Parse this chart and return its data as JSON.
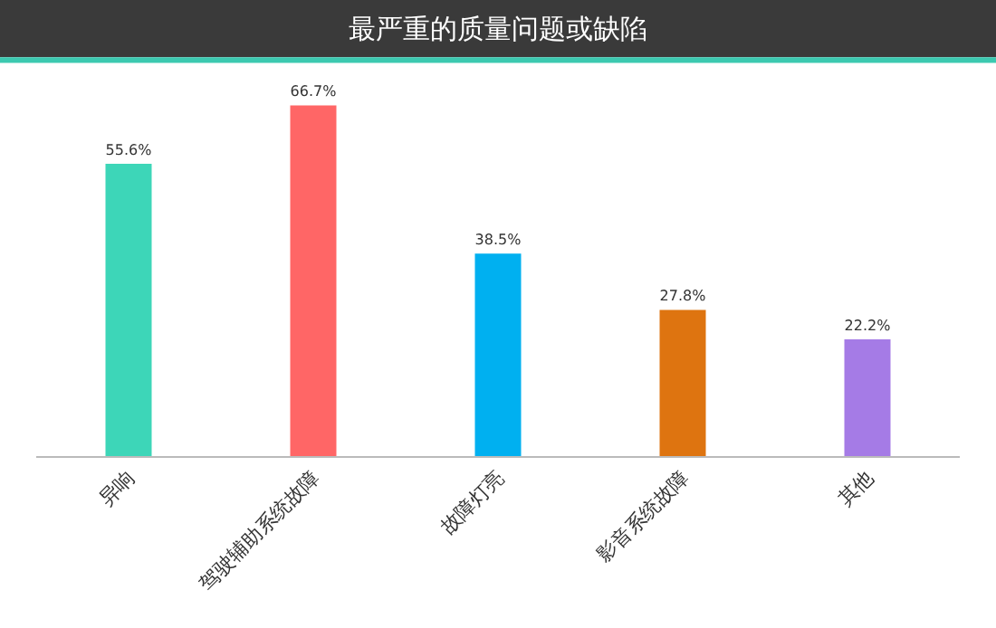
{
  "chart_data": {
    "type": "bar",
    "title": "最严重的质量问题或缺陷",
    "categories": [
      "异响",
      "驾驶辅助系统故障",
      "故障灯亮",
      "影音系统故障",
      "其他"
    ],
    "values": [
      55.6,
      66.7,
      38.5,
      27.8,
      22.2
    ],
    "colors": [
      "#3dd6b8",
      "#ff6666",
      "#00b0f0",
      "#de7410",
      "#a57be6"
    ],
    "value_labels": [
      "55.6%",
      "66.7%",
      "38.5%",
      "27.8%",
      "22.2%"
    ]
  }
}
